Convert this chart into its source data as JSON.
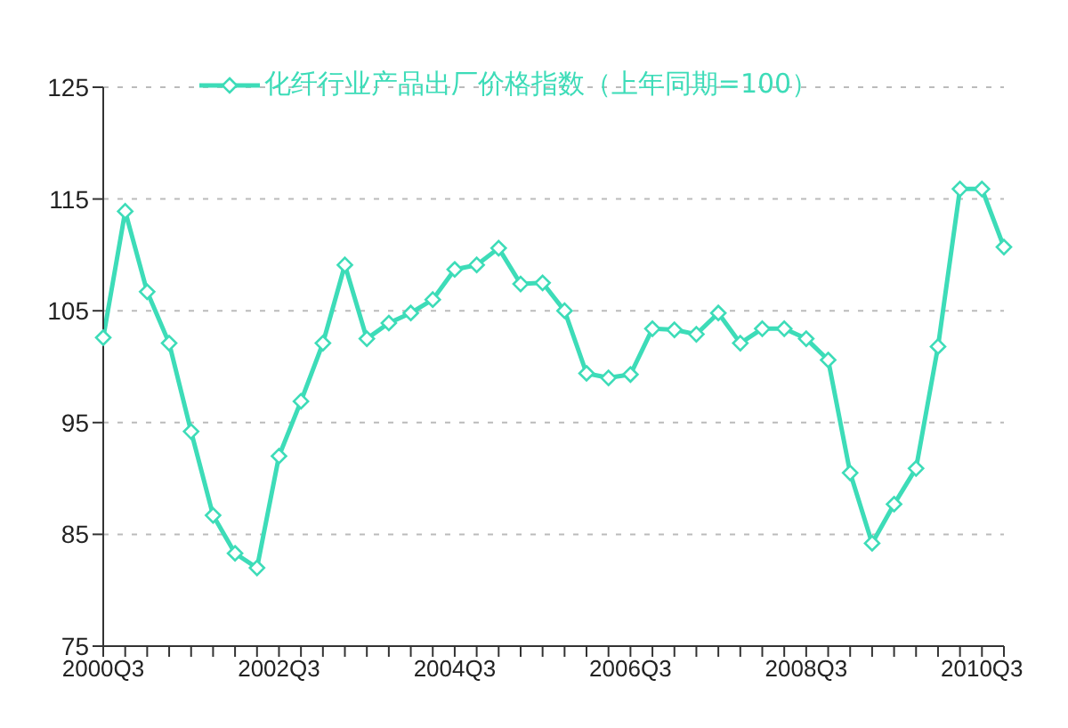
{
  "chart_data": {
    "type": "line",
    "categories": [
      "2000Q3",
      null,
      null,
      null,
      null,
      null,
      null,
      null,
      "2002Q3",
      null,
      null,
      null,
      null,
      null,
      null,
      null,
      "2004Q3",
      null,
      null,
      null,
      null,
      null,
      null,
      null,
      "2006Q3",
      null,
      null,
      null,
      null,
      null,
      null,
      null,
      "2008Q3",
      null,
      null,
      null,
      null,
      null,
      null,
      null,
      "2010Q3",
      null
    ],
    "series": [
      {
        "name": "化纤行业产品出厂价格指数（上年同期=100）",
        "color": "#3ddcb8",
        "values": [
          102.6,
          113.9,
          106.7,
          102.1,
          94.2,
          86.7,
          83.3,
          82.0,
          92.0,
          96.9,
          102.1,
          109.1,
          102.5,
          103.9,
          104.8,
          106.0,
          108.7,
          109.1,
          110.6,
          107.4,
          107.5,
          105.0,
          99.4,
          99.0,
          99.3,
          103.4,
          103.3,
          102.9,
          104.8,
          102.1,
          103.4,
          103.4,
          102.5,
          100.6,
          90.5,
          84.2,
          87.7,
          90.9,
          101.8,
          115.9,
          115.9,
          110.7
        ]
      }
    ],
    "ylim": [
      75,
      125
    ],
    "yticks": [
      75,
      85,
      95,
      105,
      115,
      125
    ],
    "grid": "y",
    "legend": "top",
    "marker": "diamond",
    "line_style": "solid"
  }
}
